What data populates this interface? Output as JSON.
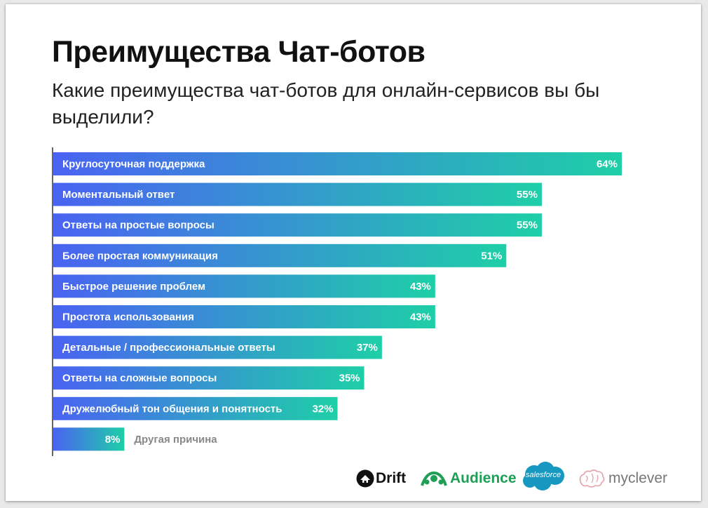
{
  "header": {
    "title": "Преимущества Чат-ботов",
    "subtitle": "Какие преимущества чат-ботов для онлайн-сервисов вы бы выделили?"
  },
  "chart_data": {
    "type": "bar",
    "orientation": "horizontal",
    "categories": [
      "Круглосуточная поддержка",
      "Моментальный ответ",
      "Ответы на простые вопросы",
      "Более простая коммуникация",
      "Быстрое решение проблем",
      "Простота использования",
      "Детальные / профессиональные ответы",
      "Ответы на сложные вопросы",
      "Дружелюбный тон общения и понятность",
      "Другая причина"
    ],
    "values": [
      64,
      55,
      55,
      51,
      43,
      43,
      37,
      35,
      32,
      8
    ],
    "value_labels": [
      "64%",
      "55%",
      "55%",
      "51%",
      "43%",
      "43%",
      "37%",
      "35%",
      "32%",
      "8%"
    ],
    "unit": "%",
    "xlim": [
      0,
      64
    ],
    "grid": false,
    "legend": "none",
    "colors": {
      "gradient_start": "#4a63f2",
      "gradient_end": "#1ecfa7"
    }
  },
  "logos": {
    "drift": "Drift",
    "audience": "Audience",
    "salesforce": "salesforce",
    "myclever": "myclever"
  }
}
